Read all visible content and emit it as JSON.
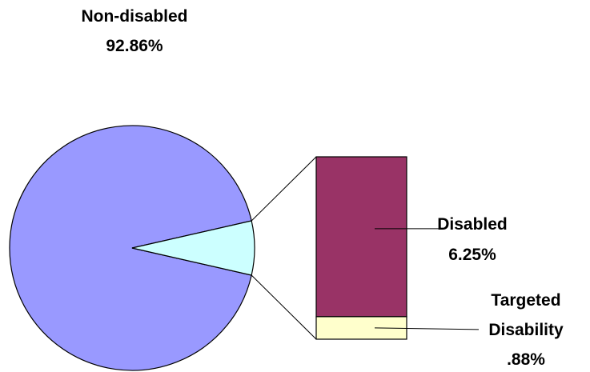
{
  "chart_data": {
    "type": "pie",
    "subtype": "bar-of-pie",
    "colors": {
      "non_disabled": "#9999ff",
      "disabled_combined_slice": "#ccffff",
      "disabled": "#993366",
      "targeted_disability": "#ffffcc",
      "outline": "#000000"
    },
    "pie": {
      "slices": [
        {
          "key": "non_disabled",
          "name": "Non-disabled",
          "value": 92.86,
          "value_label": "92.86%"
        },
        {
          "key": "disabled_total",
          "value": 7.13
        }
      ]
    },
    "bar": {
      "segments": [
        {
          "key": "disabled",
          "name": "Disabled",
          "value": 6.25,
          "value_label": "6.25%"
        },
        {
          "key": "targeted_disability",
          "name": "Targeted Disability",
          "name_lines": [
            "Targeted",
            "Disability"
          ],
          "value": 0.88,
          "value_label": ".88%"
        }
      ]
    }
  }
}
